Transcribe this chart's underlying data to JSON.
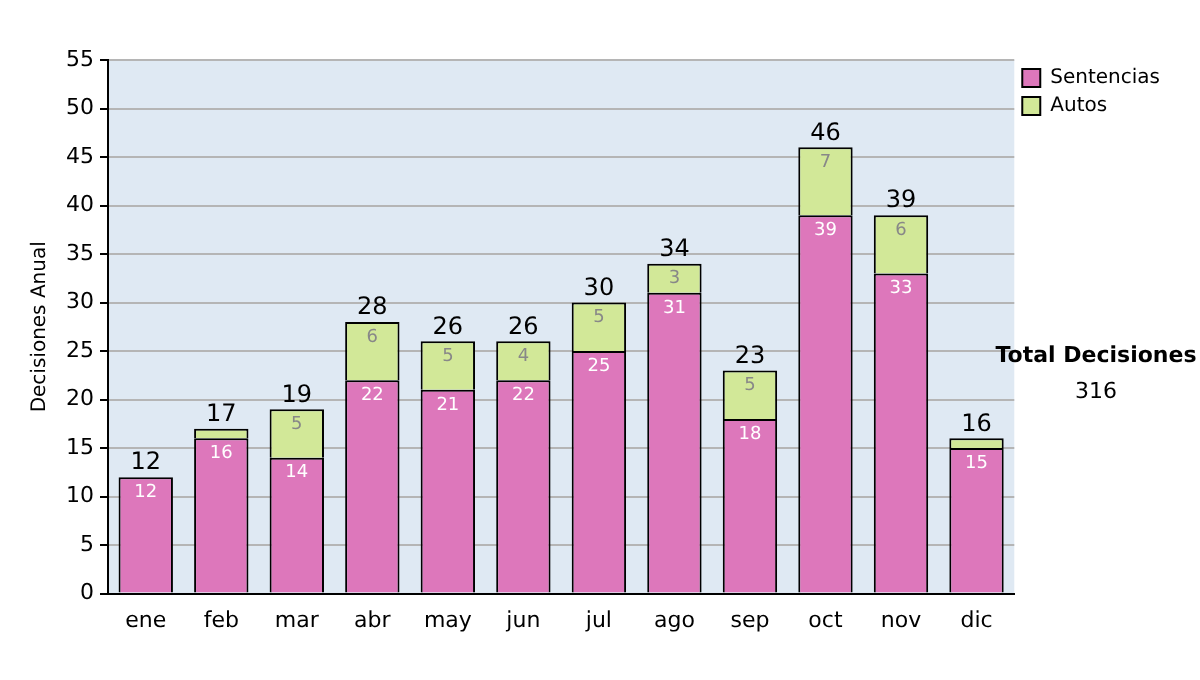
{
  "chart_data": {
    "type": "bar",
    "stacked": true,
    "ylabel": "Decisiones Anual",
    "categories": [
      "ene",
      "feb",
      "mar",
      "abr",
      "may",
      "jun",
      "jul",
      "ago",
      "sep",
      "oct",
      "nov",
      "dic"
    ],
    "series": [
      {
        "name": "Sentencias",
        "color": "#dd77bb",
        "values": [
          12,
          16,
          14,
          22,
          21,
          22,
          25,
          31,
          18,
          39,
          33,
          15
        ],
        "value_labels": [
          "12",
          "16",
          "14",
          "22",
          "21",
          "22",
          "25",
          "31",
          "18",
          "39",
          "33",
          "15"
        ]
      },
      {
        "name": "Autos",
        "color": "#d2e898",
        "values": [
          0,
          1,
          5,
          6,
          5,
          4,
          5,
          3,
          5,
          7,
          6,
          1
        ],
        "value_labels": [
          null,
          null,
          "5",
          "6",
          "5",
          "4",
          "5",
          "3",
          "5",
          "7",
          "6",
          null
        ]
      }
    ],
    "totals": [
      "12",
      "17",
      "19",
      "28",
      "26",
      "26",
      "30",
      "34",
      "23",
      "46",
      "39",
      "16"
    ],
    "ylim": [
      0,
      55
    ],
    "yticks": [
      0,
      5,
      10,
      15,
      20,
      25,
      30,
      35,
      40,
      45,
      50,
      55
    ],
    "grid": "y",
    "legend": "right",
    "annotations": [
      "Total Decisiones",
      "316"
    ]
  }
}
